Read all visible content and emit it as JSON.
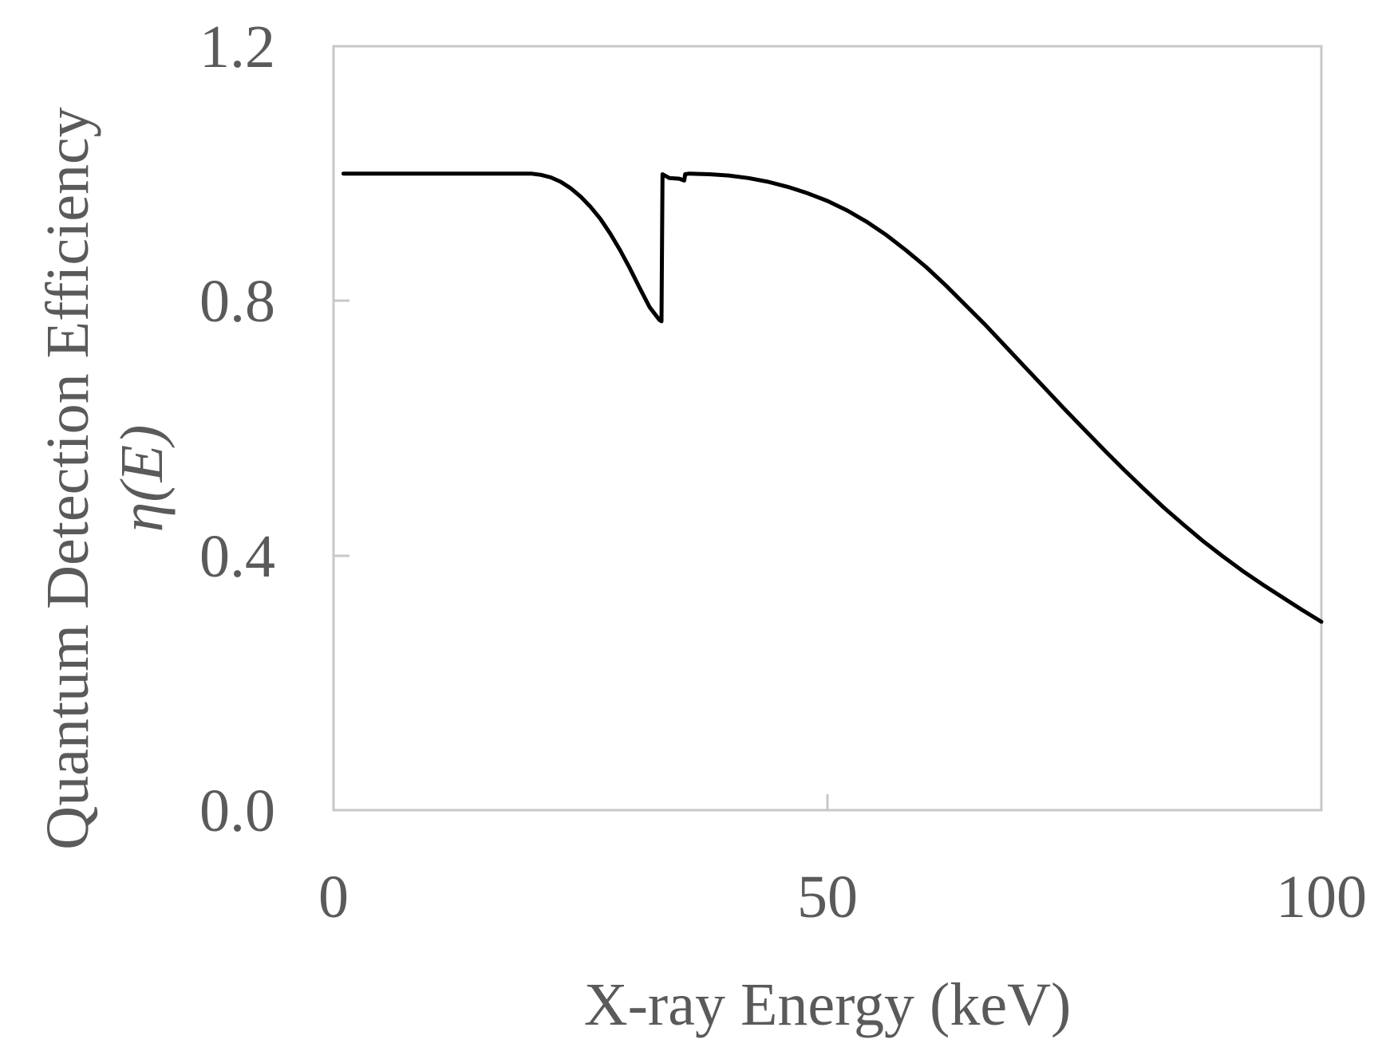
{
  "chart_data": {
    "type": "line",
    "xlabel": "X-ray Energy (keV)",
    "ylabel": "Quantum Detection Efficiency",
    "ylabel_symbol": "η(E)",
    "xlim": [
      0,
      100
    ],
    "ylim": [
      0,
      1.2
    ],
    "x_ticks": [
      "0",
      "50",
      "100"
    ],
    "y_ticks": [
      "0.0",
      "0.4",
      "0.8",
      "1.2"
    ],
    "grid": false,
    "legend": "none",
    "colors": {
      "line": "#000000",
      "axes": "#c8c8c8",
      "text": "#5a5a5a"
    },
    "series": [
      {
        "x": [
          1,
          10,
          20,
          21,
          22,
          23,
          24,
          25,
          26,
          27,
          28,
          29,
          30,
          31,
          32,
          33,
          33.2,
          33.3,
          34,
          35,
          35.5,
          35.6,
          36,
          38,
          40,
          42,
          44,
          46,
          48,
          50,
          52,
          54,
          56,
          58,
          60,
          62,
          64,
          66,
          68,
          70,
          72,
          74,
          76,
          78,
          80,
          82,
          84,
          86,
          88,
          90,
          92,
          94,
          96,
          98,
          100
        ],
        "y": [
          1.0,
          1.0,
          1.0,
          0.998,
          0.994,
          0.987,
          0.977,
          0.964,
          0.948,
          0.929,
          0.906,
          0.88,
          0.851,
          0.82,
          0.79,
          0.77,
          0.768,
          0.999,
          0.993,
          0.992,
          0.989,
          0.999,
          1.0,
          0.999,
          0.997,
          0.993,
          0.987,
          0.979,
          0.969,
          0.957,
          0.942,
          0.924,
          0.903,
          0.879,
          0.853,
          0.824,
          0.793,
          0.762,
          0.729,
          0.696,
          0.663,
          0.63,
          0.598,
          0.566,
          0.535,
          0.505,
          0.476,
          0.449,
          0.423,
          0.399,
          0.376,
          0.355,
          0.335,
          0.315,
          0.296
        ]
      }
    ]
  }
}
